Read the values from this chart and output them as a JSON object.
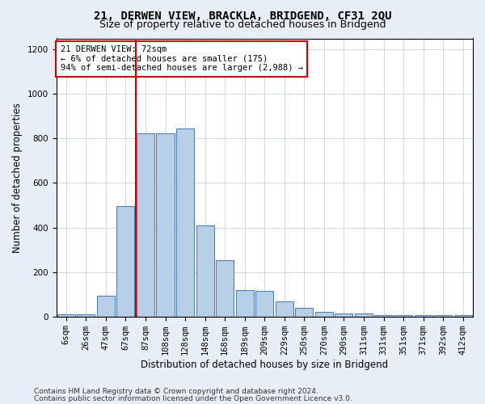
{
  "title": "21, DERWEN VIEW, BRACKLA, BRIDGEND, CF31 2QU",
  "subtitle": "Size of property relative to detached houses in Bridgend",
  "xlabel": "Distribution of detached houses by size in Bridgend",
  "ylabel": "Number of detached properties",
  "categories": [
    "6sqm",
    "26sqm",
    "47sqm",
    "67sqm",
    "87sqm",
    "108sqm",
    "128sqm",
    "148sqm",
    "168sqm",
    "189sqm",
    "209sqm",
    "229sqm",
    "250sqm",
    "270sqm",
    "290sqm",
    "311sqm",
    "331sqm",
    "351sqm",
    "371sqm",
    "392sqm",
    "412sqm"
  ],
  "values": [
    10,
    10,
    95,
    495,
    825,
    825,
    845,
    410,
    255,
    120,
    115,
    68,
    40,
    22,
    12,
    12,
    8,
    8,
    5,
    8,
    5
  ],
  "bar_color": "#b8cfe8",
  "bar_edge_color": "#5580b0",
  "vline_x_index": 3,
  "vline_color": "#cc0000",
  "annotation_text": "21 DERWEN VIEW: 72sqm\n← 6% of detached houses are smaller (175)\n94% of semi-detached houses are larger (2,988) →",
  "annotation_box_color": "#ffffff",
  "annotation_box_edge_color": "#cc0000",
  "ylim": [
    0,
    1250
  ],
  "yticks": [
    0,
    200,
    400,
    600,
    800,
    1000,
    1200
  ],
  "footer_line1": "Contains HM Land Registry data © Crown copyright and database right 2024.",
  "footer_line2": "Contains public sector information licensed under the Open Government Licence v3.0.",
  "bg_color": "#e8eef8",
  "plot_bg_color": "#ffffff",
  "title_fontsize": 10,
  "subtitle_fontsize": 9,
  "xlabel_fontsize": 8.5,
  "ylabel_fontsize": 8.5,
  "tick_fontsize": 7.5,
  "footer_fontsize": 6.5,
  "annot_fontsize": 7.5
}
